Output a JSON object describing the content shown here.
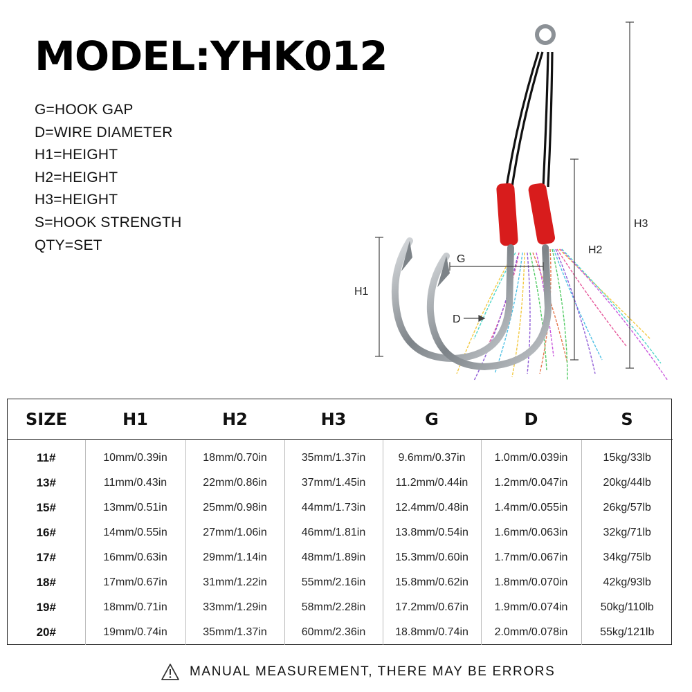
{
  "title": "MODEL:YHK012",
  "legend": [
    "G=HOOK GAP",
    "D=WIRE DIAMETER",
    "H1=HEIGHT",
    "H2=HEIGHT",
    "H3=HEIGHT",
    "S=HOOK STRENGTH",
    "QTY=SET"
  ],
  "diagram_labels": {
    "h1": "H1",
    "h2": "H2",
    "h3": "H3",
    "g": "G",
    "d": "D"
  },
  "table": {
    "headers": [
      "SIZE",
      "H1",
      "H2",
      "H3",
      "G",
      "D",
      "S"
    ],
    "rows": [
      [
        "11#",
        "10mm/0.39in",
        "18mm/0.70in",
        "35mm/1.37in",
        "9.6mm/0.37in",
        "1.0mm/0.039in",
        "15kg/33lb"
      ],
      [
        "13#",
        "11mm/0.43in",
        "22mm/0.86in",
        "37mm/1.45in",
        "11.2mm/0.44in",
        "1.2mm/0.047in",
        "20kg/44lb"
      ],
      [
        "15#",
        "13mm/0.51in",
        "25mm/0.98in",
        "44mm/1.73in",
        "12.4mm/0.48in",
        "1.4mm/0.055in",
        "26kg/57lb"
      ],
      [
        "16#",
        "14mm/0.55in",
        "27mm/1.06in",
        "46mm/1.81in",
        "13.8mm/0.54in",
        "1.6mm/0.063in",
        "32kg/71lb"
      ],
      [
        "17#",
        "16mm/0.63in",
        "29mm/1.14in",
        "48mm/1.89in",
        "15.3mm/0.60in",
        "1.7mm/0.067in",
        "34kg/75lb"
      ],
      [
        "18#",
        "17mm/0.67in",
        "31mm/1.22in",
        "55mm/2.16in",
        "15.8mm/0.62in",
        "1.8mm/0.070in",
        "42kg/93lb"
      ],
      [
        "19#",
        "18mm/0.71in",
        "33mm/1.29in",
        "58mm/2.28in",
        "17.2mm/0.67in",
        "1.9mm/0.074in",
        "50kg/110lb"
      ],
      [
        "20#",
        "19mm/0.74in",
        "35mm/1.37in",
        "60mm/2.36in",
        "18.8mm/0.74in",
        "2.0mm/0.078in",
        "55kg/121lb"
      ]
    ]
  },
  "note": "MANUAL MEASUREMENT, THERE MAY BE ERRORS",
  "icons": {
    "warning": "warning-triangle-icon"
  },
  "colors": {
    "thread": "#d81c1c",
    "cord": "#111111",
    "hook": "#8c9196"
  }
}
